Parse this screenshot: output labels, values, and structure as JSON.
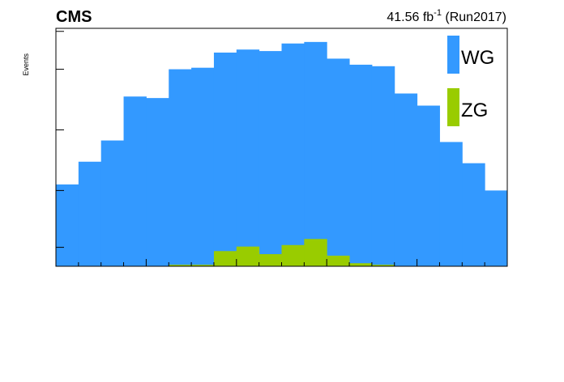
{
  "header": {
    "experiment": "CMS",
    "lumi_value": "41.56 fb",
    "lumi_exp": "-1",
    "run": " (Run2017)"
  },
  "chart_data": {
    "type": "bar",
    "stacked": false,
    "ylabel": "Events",
    "xlabel": "",
    "grid": false,
    "legend_position": "top-right",
    "bins": 20,
    "series": [
      {
        "name": "WG",
        "color": "#3399ff",
        "values": [
          0.54,
          0.69,
          0.83,
          1.12,
          1.11,
          1.3,
          1.31,
          1.41,
          1.43,
          1.42,
          1.47,
          1.48,
          1.37,
          1.33,
          1.32,
          1.14,
          1.06,
          0.82,
          0.68,
          0.5
        ]
      },
      {
        "name": "ZG",
        "color": "#99cc00",
        "values": [
          0,
          0,
          0,
          0,
          0,
          0.01,
          0.01,
          0.1,
          0.13,
          0.08,
          0.14,
          0.18,
          0.07,
          0.02,
          0.01,
          0,
          0,
          0,
          0,
          0
        ]
      }
    ],
    "ylim": [
      0,
      1.57
    ]
  }
}
